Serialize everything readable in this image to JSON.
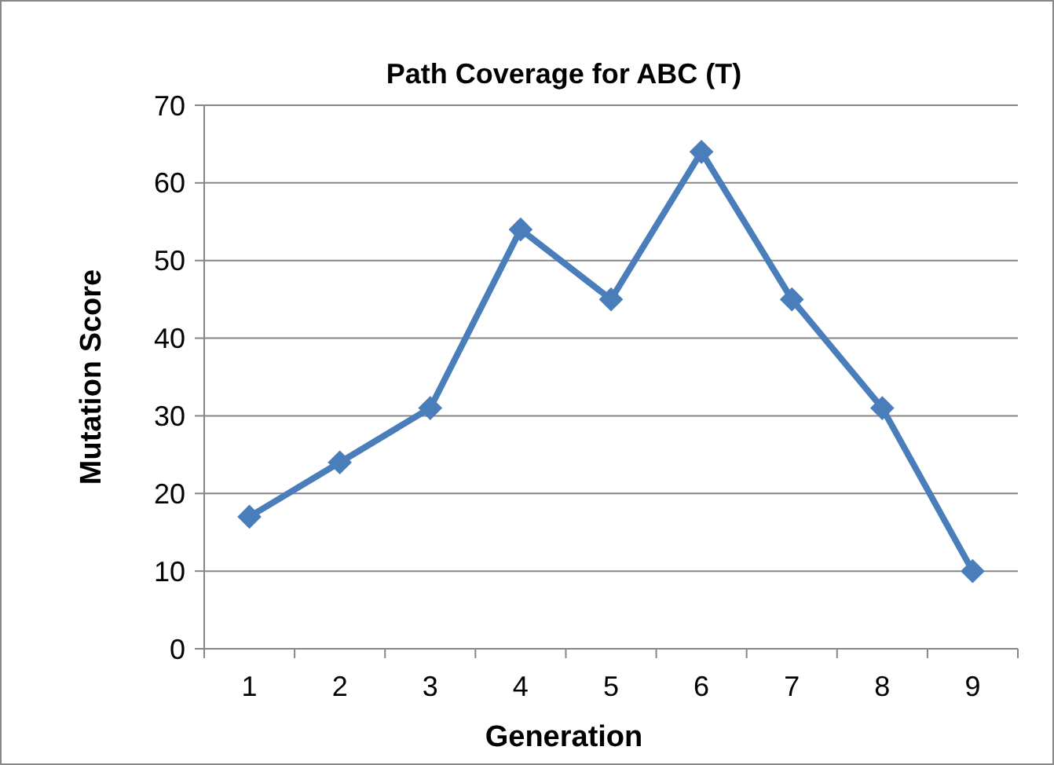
{
  "chart_data": {
    "type": "line",
    "title": "Path Coverage for ABC (T)",
    "xlabel": "Generation",
    "ylabel": "Mutation Score",
    "categories": [
      "1",
      "2",
      "3",
      "4",
      "5",
      "6",
      "7",
      "8",
      "9"
    ],
    "series": [
      {
        "color": "#4a7ebb",
        "values": [
          17,
          24,
          31,
          54,
          45,
          64,
          45,
          31,
          10
        ]
      }
    ],
    "ylim": [
      0,
      70
    ],
    "yticks": [
      0,
      10,
      20,
      30,
      40,
      50,
      60,
      70
    ],
    "grid": "y",
    "marker": "diamond",
    "line_style": "solid"
  }
}
